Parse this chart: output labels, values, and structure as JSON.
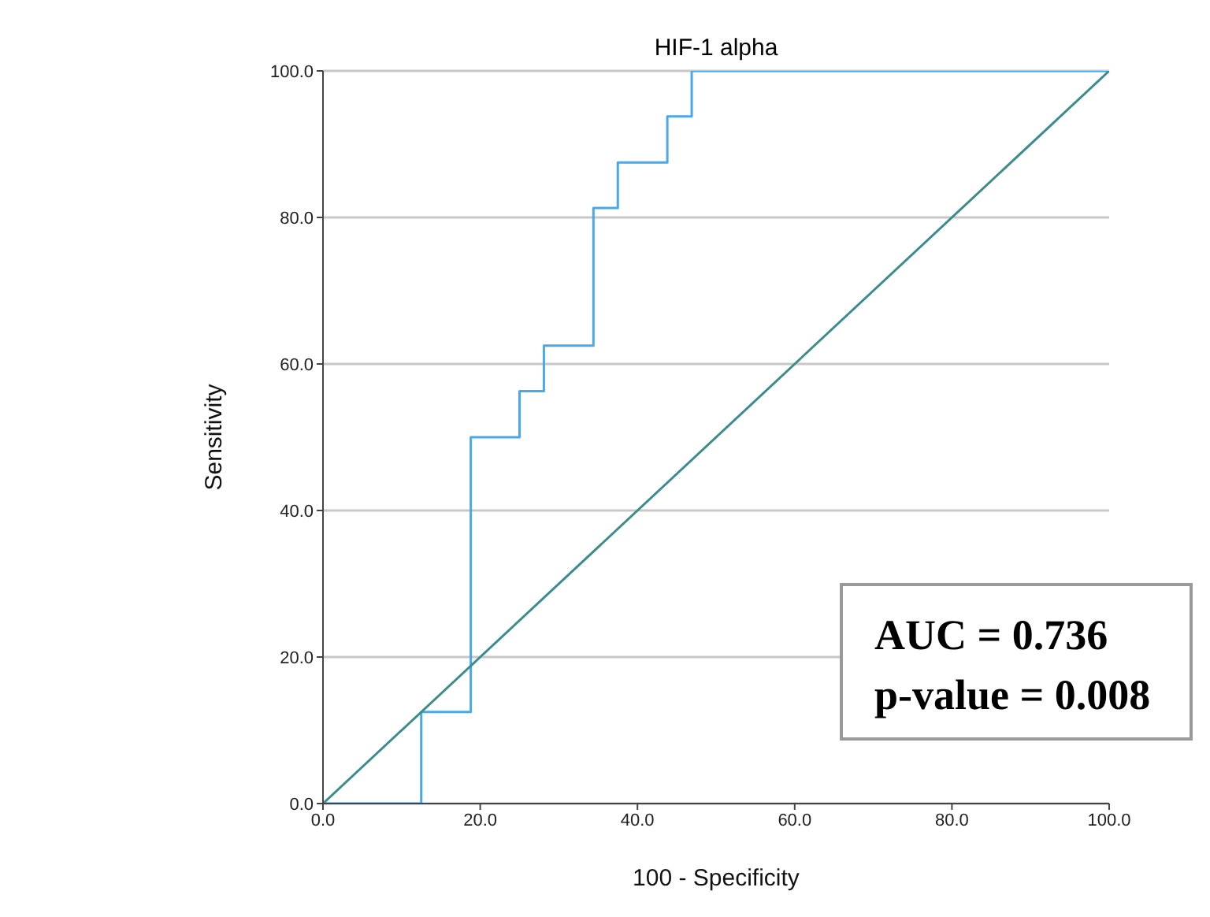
{
  "chart_data": {
    "type": "step",
    "title": "HIF-1 alpha",
    "xlabel": "100 - Specificity",
    "ylabel": "Sensitivity",
    "series": [
      {
        "color": "#4aa8e8",
        "x": [
          0,
          12.5,
          18.8,
          25,
          28.1,
          34.4,
          37.5,
          43.8,
          46.9,
          100
        ],
        "values": [
          0,
          12.5,
          50,
          56.3,
          62.5,
          81.3,
          87.5,
          93.8,
          100,
          100
        ]
      },
      {
        "type": "line",
        "color": "#3d8c8c",
        "x": [
          0,
          100
        ],
        "values": [
          0,
          100
        ]
      }
    ],
    "xlim": [
      0,
      100
    ],
    "ylim": [
      0,
      100
    ],
    "xticks": [
      {
        "value": 0,
        "label": "0.0"
      },
      {
        "value": 20,
        "label": "20.0"
      },
      {
        "value": 40,
        "label": "40.0"
      },
      {
        "value": 60,
        "label": "60.0"
      },
      {
        "value": 80,
        "label": "80.0"
      },
      {
        "value": 100,
        "label": "100.0"
      }
    ],
    "yticks": [
      {
        "value": 0,
        "label": "0.0"
      },
      {
        "value": 20,
        "label": "20.0"
      },
      {
        "value": 40,
        "label": "40.0"
      },
      {
        "value": 60,
        "label": "60.0"
      },
      {
        "value": 80,
        "label": "80.0"
      },
      {
        "value": 100,
        "label": "100.0"
      }
    ],
    "grid": "y",
    "marker": "none",
    "line_style": "solid",
    "annotations": [
      "AUC = 0.736",
      "p-value = 0.008"
    ]
  }
}
